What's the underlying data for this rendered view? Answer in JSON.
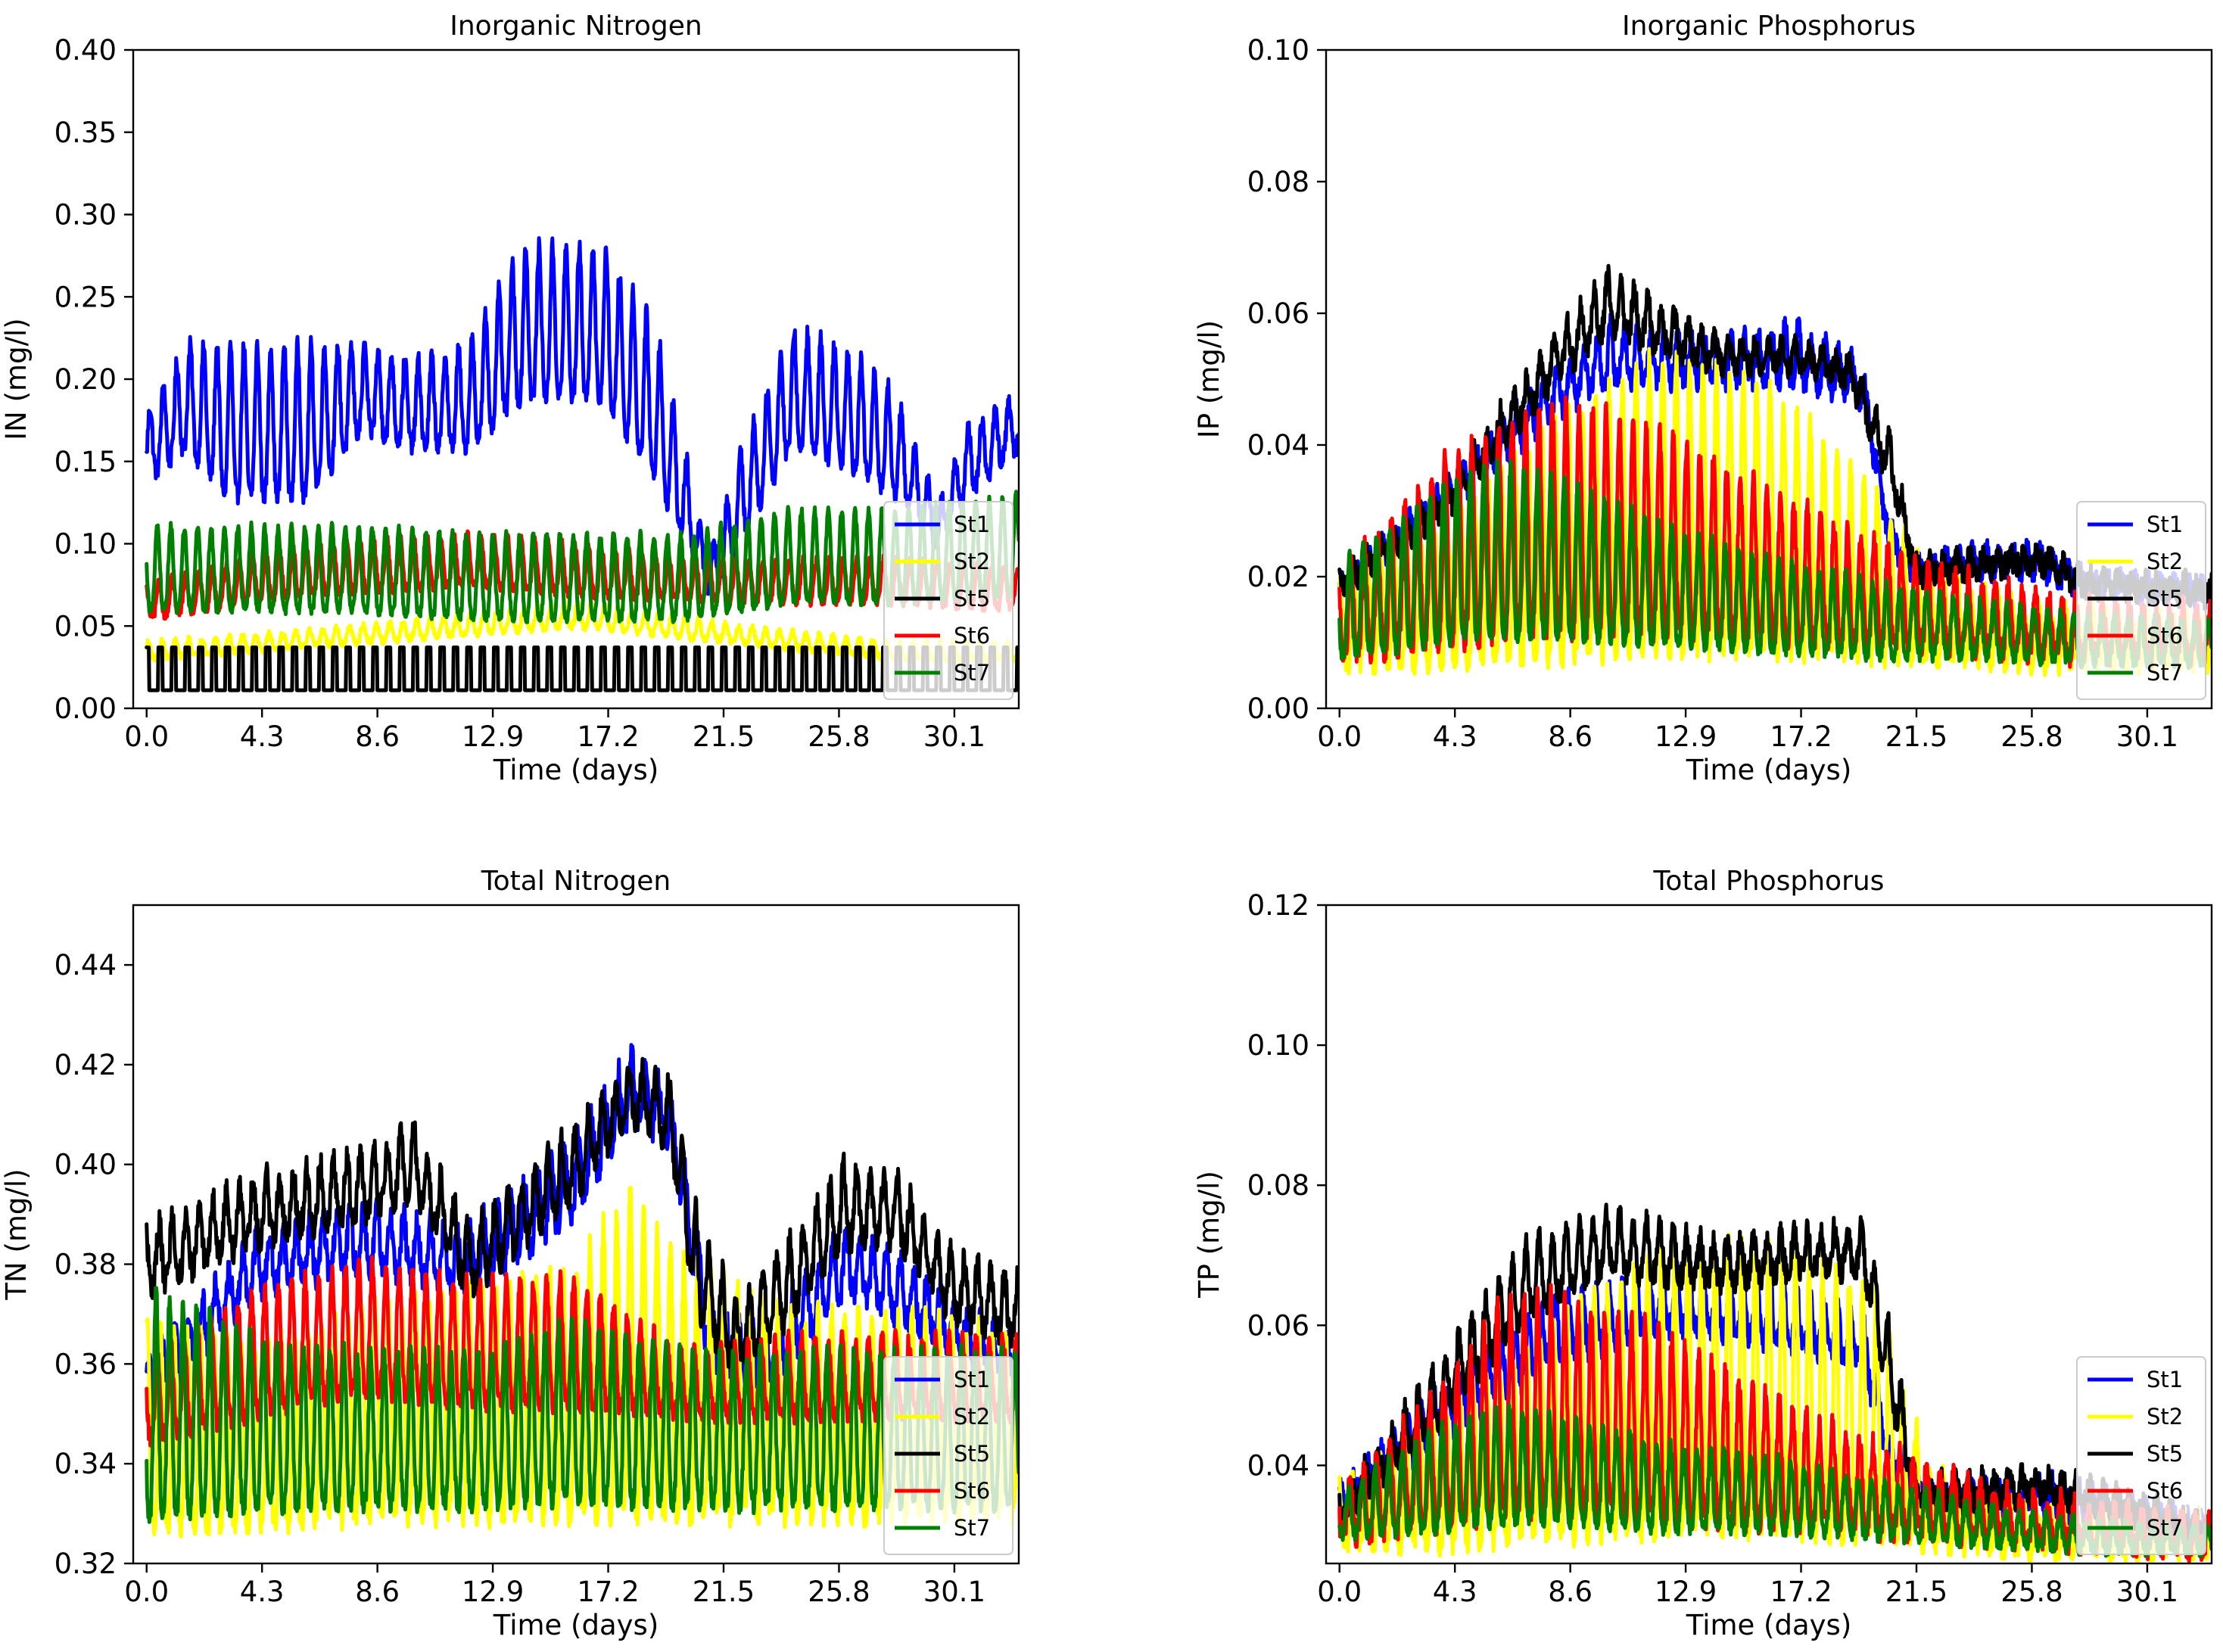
{
  "chart_data": [
    {
      "type": "line",
      "title": "Inorganic Nitrogen",
      "xlabel": "Time (days)",
      "ylabel": "IN (mg/l)",
      "xlim": [
        -0.5,
        32.5
      ],
      "ylim": [
        0.0,
        0.4
      ],
      "xticks": [
        "0.0",
        "4.3",
        "8.6",
        "12.9",
        "17.2",
        "21.5",
        "25.8",
        "30.1"
      ],
      "xtick_values": [
        0.0,
        4.3,
        8.6,
        12.9,
        17.2,
        21.5,
        25.8,
        30.1
      ],
      "yticks": [
        "0.00",
        "0.05",
        "0.10",
        "0.15",
        "0.20",
        "0.25",
        "0.30",
        "0.35",
        "0.40"
      ],
      "ytick_values": [
        0.0,
        0.05,
        0.1,
        0.15,
        0.2,
        0.25,
        0.3,
        0.35,
        0.4
      ],
      "legend_position": "lower-right",
      "series": [
        {
          "name": "St1",
          "color": "#0000ff",
          "env_x": [
            0,
            1.5,
            3,
            6,
            8,
            10,
            12,
            14,
            17,
            19,
            21,
            22,
            24,
            26,
            28,
            29.5,
            30.5,
            32.5
          ],
          "base": [
            0.14,
            0.16,
            0.13,
            0.13,
            0.17,
            0.16,
            0.16,
            0.19,
            0.19,
            0.14,
            0.07,
            0.1,
            0.16,
            0.15,
            0.13,
            0.1,
            0.13,
            0.16
          ],
          "amp": [
            0.04,
            0.06,
            0.09,
            0.09,
            0.05,
            0.05,
            0.06,
            0.09,
            0.09,
            0.09,
            0.02,
            0.05,
            0.07,
            0.07,
            0.06,
            0.02,
            0.04,
            0.03
          ],
          "period": 0.5,
          "noise": 0.006
        },
        {
          "name": "St2",
          "color": "#ffff00",
          "env_x": [
            0,
            8,
            16,
            22,
            28,
            32.5
          ],
          "base": [
            0.03,
            0.04,
            0.05,
            0.04,
            0.03,
            0.03
          ],
          "amp": [
            0.01,
            0.01,
            0.015,
            0.01,
            0.01,
            0.01
          ],
          "period": 0.5,
          "noise": 0.002
        },
        {
          "name": "St5",
          "color": "#000000",
          "env_x": [
            0,
            16,
            22,
            28.5,
            32.5
          ],
          "base": [
            0.011,
            0.011,
            0.011,
            0.011,
            0.011
          ],
          "amp": [
            0.026,
            0.026,
            0.026,
            0.026,
            0.026
          ],
          "period": 0.5,
          "noise": 0.0,
          "spiky": true
        },
        {
          "name": "St6",
          "color": "#ff0000",
          "env_x": [
            0,
            6,
            12,
            16,
            22,
            28,
            32.5
          ],
          "base": [
            0.055,
            0.07,
            0.075,
            0.07,
            0.065,
            0.065,
            0.06
          ],
          "amp": [
            0.02,
            0.03,
            0.03,
            0.03,
            0.025,
            0.025,
            0.025
          ],
          "period": 0.5,
          "noise": 0.003
        },
        {
          "name": "St7",
          "color": "#008000",
          "env_x": [
            0,
            4,
            8,
            12,
            16,
            20,
            24,
            28,
            32.5
          ],
          "base": [
            0.06,
            0.06,
            0.06,
            0.055,
            0.055,
            0.055,
            0.065,
            0.065,
            0.07
          ],
          "amp": [
            0.05,
            0.05,
            0.05,
            0.05,
            0.05,
            0.05,
            0.055,
            0.055,
            0.06
          ],
          "period": 0.5,
          "noise": 0.003
        }
      ]
    },
    {
      "type": "line",
      "title": "Inorganic Phosphorus",
      "xlabel": "Time (days)",
      "ylabel": "IP (mg/l)",
      "xlim": [
        -0.5,
        32.5
      ],
      "ylim": [
        0.0,
        0.1
      ],
      "xticks": [
        "0.0",
        "4.3",
        "8.6",
        "12.9",
        "17.2",
        "21.5",
        "25.8",
        "30.1"
      ],
      "xtick_values": [
        0.0,
        4.3,
        8.6,
        12.9,
        17.2,
        21.5,
        25.8,
        30.1
      ],
      "yticks": [
        "0.00",
        "0.02",
        "0.04",
        "0.06",
        "0.08",
        "0.10"
      ],
      "ytick_values": [
        0.0,
        0.02,
        0.04,
        0.06,
        0.08,
        0.1
      ],
      "legend_position": "lower-right",
      "series": [
        {
          "name": "St1",
          "color": "#0000ff",
          "env_x": [
            0,
            4,
            8,
            10,
            14,
            17,
            19.5,
            20.5,
            21.5,
            24,
            26,
            28,
            32.5
          ],
          "base": [
            0.017,
            0.03,
            0.045,
            0.05,
            0.05,
            0.05,
            0.047,
            0.025,
            0.02,
            0.021,
            0.021,
            0.018,
            0.017
          ],
          "amp": [
            0.002,
            0.004,
            0.006,
            0.008,
            0.006,
            0.008,
            0.005,
            0.003,
            0.002,
            0.003,
            0.003,
            0.002,
            0.002
          ],
          "period": 0.5,
          "noise": 0.002
        },
        {
          "name": "St2",
          "color": "#ffff00",
          "env_x": [
            0,
            4,
            8,
            12,
            16,
            20,
            22,
            26,
            32.5
          ],
          "base": [
            0.007,
            0.007,
            0.008,
            0.009,
            0.009,
            0.008,
            0.008,
            0.007,
            0.007
          ],
          "amp": [
            0.012,
            0.02,
            0.035,
            0.045,
            0.04,
            0.025,
            0.012,
            0.008,
            0.006
          ],
          "period": 0.5,
          "noise": 0.002
        },
        {
          "name": "St5",
          "color": "#000000",
          "env_x": [
            0,
            4,
            8,
            10,
            12,
            14,
            17,
            19,
            20.5,
            21.5,
            24,
            26,
            28,
            32.5
          ],
          "base": [
            0.018,
            0.03,
            0.05,
            0.058,
            0.055,
            0.052,
            0.052,
            0.05,
            0.035,
            0.02,
            0.021,
            0.022,
            0.018,
            0.017
          ],
          "amp": [
            0.002,
            0.004,
            0.006,
            0.008,
            0.006,
            0.004,
            0.003,
            0.003,
            0.006,
            0.002,
            0.002,
            0.002,
            0.002,
            0.002
          ],
          "period": 0.5,
          "noise": 0.002
        },
        {
          "name": "St6",
          "color": "#ff0000",
          "env_x": [
            0,
            4,
            8,
            12,
            16,
            20,
            24,
            28,
            32.5
          ],
          "base": [
            0.008,
            0.01,
            0.012,
            0.012,
            0.011,
            0.01,
            0.009,
            0.008,
            0.008
          ],
          "amp": [
            0.012,
            0.028,
            0.035,
            0.03,
            0.022,
            0.015,
            0.01,
            0.008,
            0.007
          ],
          "period": 0.5,
          "noise": 0.002
        },
        {
          "name": "St7",
          "color": "#008000",
          "env_x": [
            0,
            4,
            6,
            8,
            12,
            16,
            20,
            24,
            28,
            32.5
          ],
          "base": [
            0.008,
            0.01,
            0.011,
            0.011,
            0.01,
            0.009,
            0.008,
            0.008,
            0.007,
            0.007
          ],
          "amp": [
            0.014,
            0.024,
            0.026,
            0.024,
            0.018,
            0.014,
            0.011,
            0.008,
            0.007,
            0.006
          ],
          "period": 0.5,
          "noise": 0.001
        }
      ]
    },
    {
      "type": "line",
      "title": "Total Nitrogen",
      "xlabel": "Time (days)",
      "ylabel": "TN (mg/l)",
      "xlim": [
        -0.5,
        32.5
      ],
      "ylim": [
        0.32,
        0.452
      ],
      "xticks": [
        "0.0",
        "4.3",
        "8.6",
        "12.9",
        "17.2",
        "21.5",
        "25.8",
        "30.1"
      ],
      "xtick_values": [
        0.0,
        4.3,
        8.6,
        12.9,
        17.2,
        21.5,
        25.8,
        30.1
      ],
      "yticks": [
        "0.32",
        "0.34",
        "0.36",
        "0.38",
        "0.40",
        "0.42",
        "0.44"
      ],
      "ytick_values": [
        0.32,
        0.34,
        0.36,
        0.38,
        0.4,
        0.42,
        0.44
      ],
      "legend_position": "lower-right",
      "series": [
        {
          "name": "St1",
          "color": "#0000ff",
          "env_x": [
            0,
            4,
            8,
            12,
            16,
            18,
            19.5,
            21,
            23,
            26,
            28,
            32.5
          ],
          "base": [
            0.35,
            0.375,
            0.38,
            0.375,
            0.39,
            0.41,
            0.405,
            0.36,
            0.355,
            0.375,
            0.37,
            0.355
          ],
          "amp": [
            0.01,
            0.01,
            0.012,
            0.012,
            0.015,
            0.012,
            0.01,
            0.012,
            0.012,
            0.012,
            0.012,
            0.008
          ],
          "period": 0.5,
          "noise": 0.003
        },
        {
          "name": "St2",
          "color": "#ffff00",
          "env_x": [
            0,
            4,
            8,
            12,
            16,
            18,
            20,
            24,
            28,
            32.5
          ],
          "base": [
            0.328,
            0.328,
            0.33,
            0.33,
            0.33,
            0.33,
            0.33,
            0.33,
            0.33,
            0.33
          ],
          "amp": [
            0.04,
            0.035,
            0.04,
            0.045,
            0.05,
            0.065,
            0.05,
            0.04,
            0.04,
            0.035
          ],
          "period": 0.5,
          "noise": 0.003
        },
        {
          "name": "St5",
          "color": "#000000",
          "env_x": [
            0,
            4,
            8,
            10,
            12,
            16,
            18,
            19.5,
            20.5,
            22,
            24,
            26,
            28,
            30,
            32.5
          ],
          "base": [
            0.375,
            0.385,
            0.39,
            0.395,
            0.375,
            0.395,
            0.41,
            0.405,
            0.37,
            0.36,
            0.37,
            0.385,
            0.385,
            0.37,
            0.365
          ],
          "amp": [
            0.012,
            0.012,
            0.012,
            0.012,
            0.012,
            0.012,
            0.01,
            0.012,
            0.02,
            0.012,
            0.015,
            0.015,
            0.012,
            0.012,
            0.012
          ],
          "period": 0.5,
          "noise": 0.003
        },
        {
          "name": "St6",
          "color": "#ff0000",
          "env_x": [
            0,
            4,
            8,
            12,
            16,
            20,
            24,
            28,
            32.5
          ],
          "base": [
            0.345,
            0.35,
            0.355,
            0.352,
            0.352,
            0.35,
            0.35,
            0.35,
            0.35
          ],
          "amp": [
            0.015,
            0.025,
            0.025,
            0.025,
            0.025,
            0.012,
            0.015,
            0.015,
            0.015
          ],
          "period": 0.5,
          "noise": 0.002
        },
        {
          "name": "St7",
          "color": "#008000",
          "env_x": [
            0,
            4,
            8,
            12,
            16,
            20,
            24,
            28,
            32.5
          ],
          "base": [
            0.33,
            0.331,
            0.332,
            0.332,
            0.333,
            0.332,
            0.332,
            0.332,
            0.332
          ],
          "amp": [
            0.045,
            0.035,
            0.03,
            0.03,
            0.035,
            0.03,
            0.03,
            0.03,
            0.03
          ],
          "period": 0.5,
          "noise": 0.002
        }
      ]
    },
    {
      "type": "line",
      "title": "Total Phosphorus",
      "xlabel": "Time (days)",
      "ylabel": "TP (mg/l)",
      "xlim": [
        -0.5,
        32.5
      ],
      "ylim": [
        0.026,
        0.12
      ],
      "xticks": [
        "0.0",
        "4.3",
        "8.6",
        "12.9",
        "17.2",
        "21.5",
        "25.8",
        "30.1"
      ],
      "xtick_values": [
        0.0,
        4.3,
        8.6,
        12.9,
        17.2,
        21.5,
        25.8,
        30.1
      ],
      "yticks": [
        "0.04",
        "0.06",
        "0.08",
        "0.10",
        "0.12"
      ],
      "ytick_values": [
        0.04,
        0.06,
        0.08,
        0.1,
        0.12
      ],
      "legend_position": "lower-right",
      "series": [
        {
          "name": "St1",
          "color": "#0000ff",
          "env_x": [
            0,
            4,
            8,
            12,
            16,
            19.5,
            20.5,
            22,
            26,
            28,
            32.5
          ],
          "base": [
            0.033,
            0.045,
            0.055,
            0.06,
            0.058,
            0.055,
            0.04,
            0.033,
            0.034,
            0.032,
            0.03
          ],
          "amp": [
            0.003,
            0.006,
            0.008,
            0.008,
            0.008,
            0.006,
            0.004,
            0.003,
            0.004,
            0.004,
            0.002
          ],
          "period": 0.5,
          "noise": 0.002
        },
        {
          "name": "St2",
          "color": "#ffff00",
          "env_x": [
            0,
            4,
            8,
            12,
            16,
            20,
            22,
            26,
            32.5
          ],
          "base": [
            0.029,
            0.029,
            0.03,
            0.031,
            0.031,
            0.03,
            0.029,
            0.028,
            0.028
          ],
          "amp": [
            0.008,
            0.018,
            0.03,
            0.04,
            0.04,
            0.035,
            0.01,
            0.005,
            0.004
          ],
          "period": 0.5,
          "noise": 0.002
        },
        {
          "name": "St5",
          "color": "#000000",
          "env_x": [
            0,
            4,
            7,
            10,
            14,
            17,
            19.5,
            20.5,
            21.5,
            24,
            26,
            28,
            32.5
          ],
          "base": [
            0.032,
            0.048,
            0.062,
            0.068,
            0.066,
            0.068,
            0.068,
            0.05,
            0.035,
            0.035,
            0.036,
            0.034,
            0.03
          ],
          "amp": [
            0.003,
            0.008,
            0.01,
            0.008,
            0.006,
            0.005,
            0.006,
            0.01,
            0.003,
            0.003,
            0.003,
            0.003,
            0.002
          ],
          "period": 0.5,
          "noise": 0.002
        },
        {
          "name": "St6",
          "color": "#ff0000",
          "env_x": [
            0,
            4,
            6,
            8,
            12,
            16,
            20,
            24,
            28,
            32.5
          ],
          "base": [
            0.03,
            0.032,
            0.033,
            0.034,
            0.033,
            0.032,
            0.031,
            0.03,
            0.029,
            0.028
          ],
          "amp": [
            0.006,
            0.02,
            0.03,
            0.03,
            0.026,
            0.018,
            0.012,
            0.007,
            0.005,
            0.004
          ],
          "period": 0.5,
          "noise": 0.002
        },
        {
          "name": "St7",
          "color": "#008000",
          "env_x": [
            0,
            4,
            6,
            8,
            12,
            16,
            20,
            24,
            28,
            32.5
          ],
          "base": [
            0.03,
            0.031,
            0.032,
            0.032,
            0.031,
            0.031,
            0.03,
            0.029,
            0.028,
            0.028
          ],
          "amp": [
            0.006,
            0.015,
            0.016,
            0.015,
            0.012,
            0.01,
            0.008,
            0.005,
            0.004,
            0.003
          ],
          "period": 0.5,
          "noise": 0.001
        }
      ]
    }
  ]
}
